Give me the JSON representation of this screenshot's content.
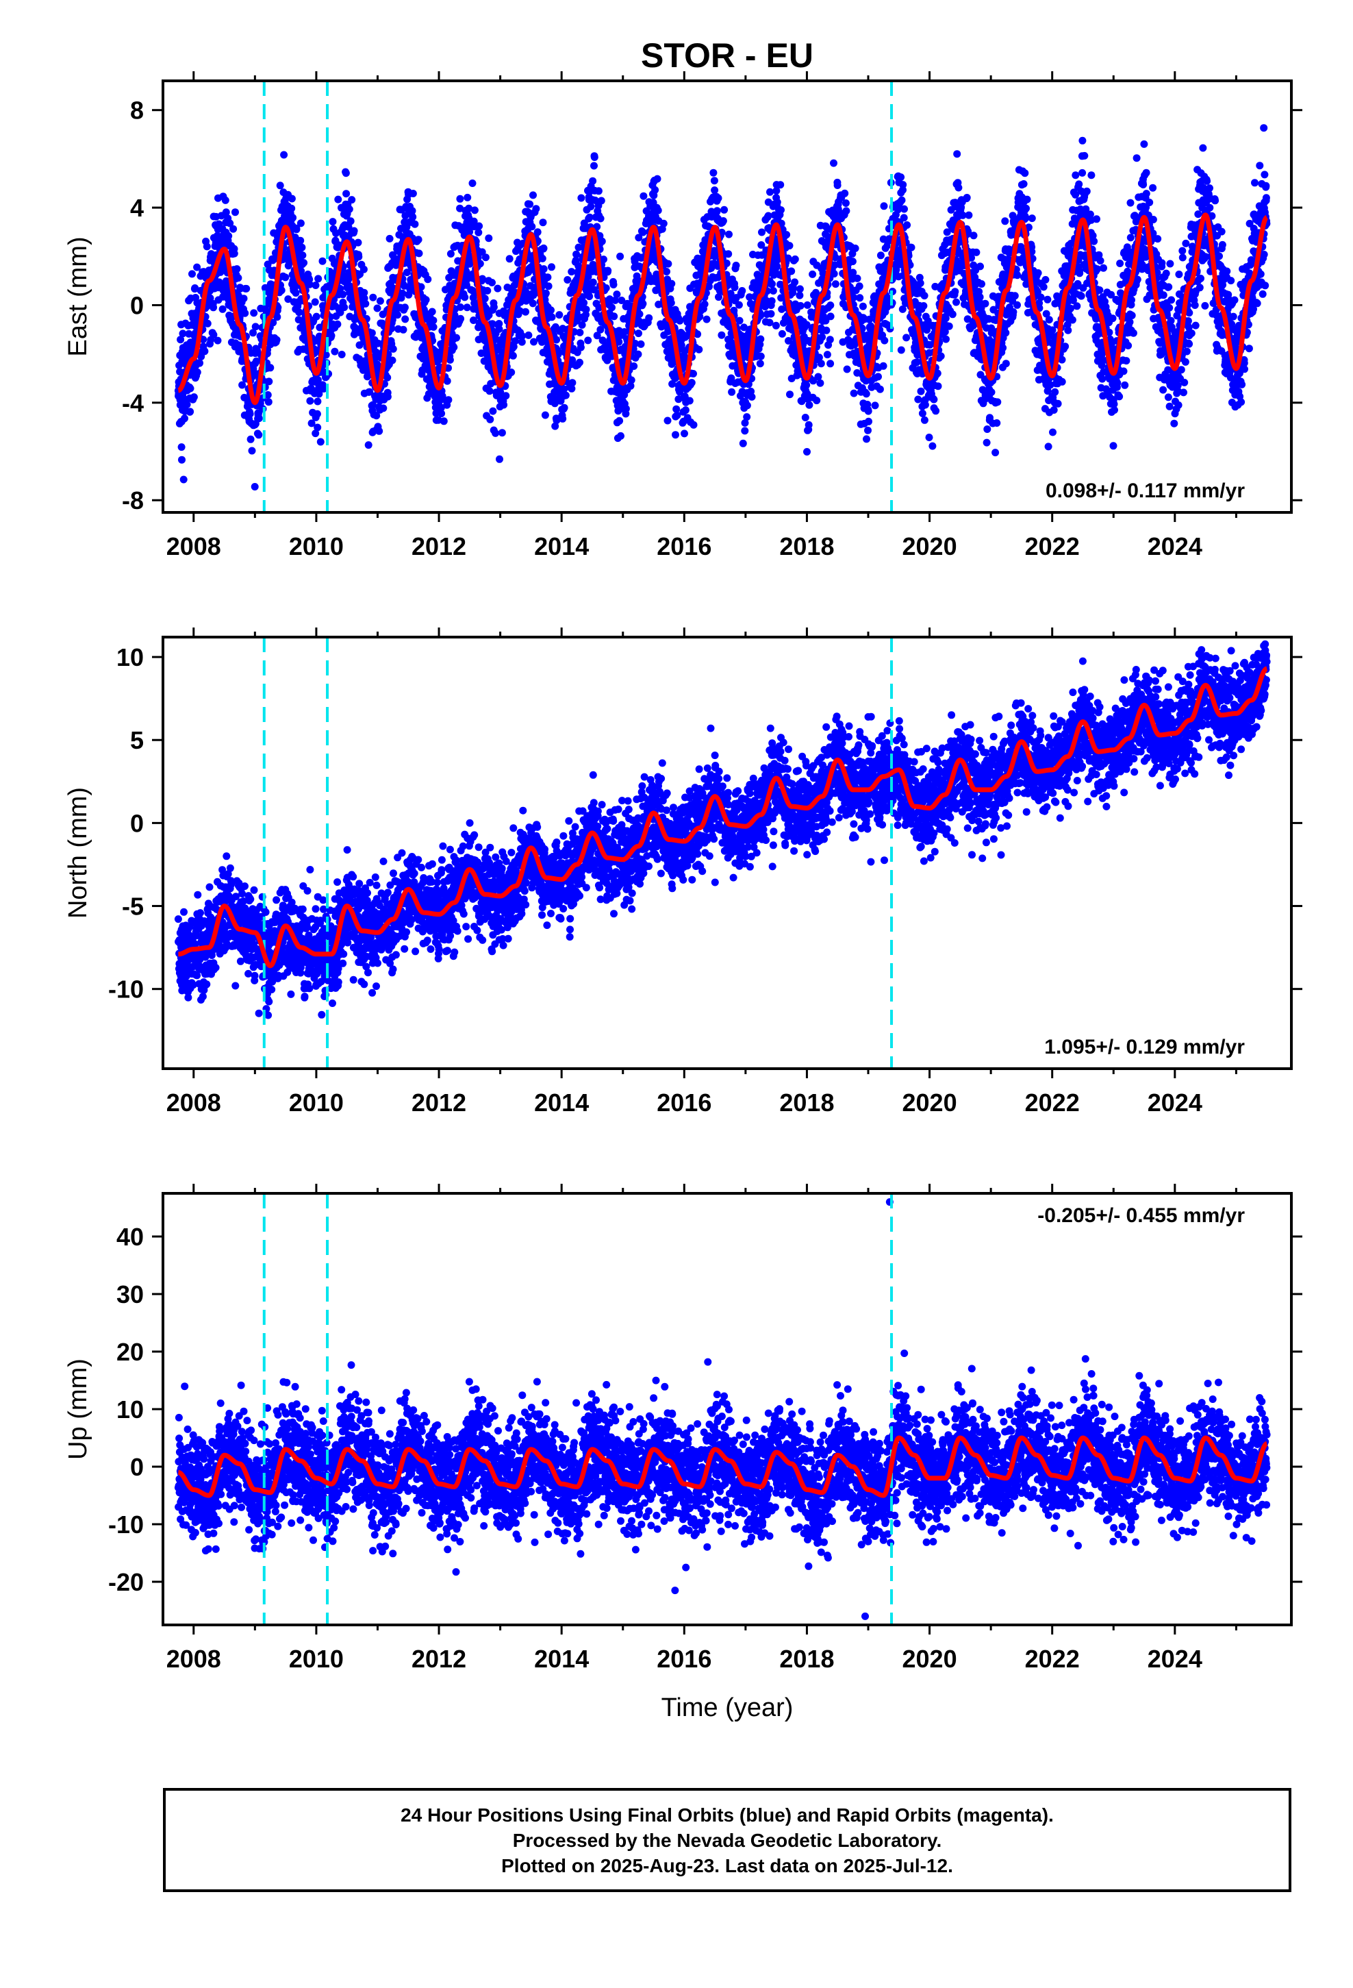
{
  "figure": {
    "title": "STOR - EU",
    "xlabel": "Time (year)",
    "footer_lines": [
      "24 Hour Positions Using Final Orbits (blue) and Rapid Orbits (magenta).",
      "Processed by the Nevada Geodetic Laboratory.",
      "Plotted on 2025-Aug-23. Last data on 2025-Jul-12."
    ],
    "colors": {
      "data_points": "#0000ff",
      "model_fit": "#ff0000",
      "equipment_change": "#00e5ee",
      "axes": "#000000"
    }
  },
  "chart_data": [
    {
      "type": "scatter",
      "component": "east",
      "ylabel": "East (mm)",
      "rate_label": "0.098+/- 0.117 mm/yr",
      "rate_position": "bottom-right",
      "xlim": [
        2007.5,
        2025.9
      ],
      "ylim": [
        -8.5,
        9.2
      ],
      "x_ticks": [
        2008,
        2010,
        2012,
        2014,
        2016,
        2018,
        2020,
        2022,
        2024
      ],
      "y_ticks": [
        -8,
        -4,
        0,
        4,
        8
      ],
      "equipment_changes": [
        2009.15,
        2010.18,
        2019.38
      ],
      "series": [
        {
          "role": "daily positions",
          "x": [
            2007.75,
            2008.0,
            2008.25,
            2008.5,
            2008.75,
            2009.0,
            2009.25,
            2009.5,
            2009.75,
            2010.0,
            2010.25,
            2010.5,
            2010.75,
            2011.0,
            2011.25,
            2011.5,
            2011.75,
            2012.0,
            2012.25,
            2012.5,
            2012.75,
            2013.0,
            2013.25,
            2013.5,
            2013.75,
            2014.0,
            2014.25,
            2014.5,
            2014.75,
            2015.0,
            2015.25,
            2015.5,
            2015.75,
            2016.0,
            2016.25,
            2016.5,
            2016.75,
            2017.0,
            2017.25,
            2017.5,
            2017.75,
            2018.0,
            2018.25,
            2018.5,
            2018.75,
            2019.0,
            2019.25,
            2019.5,
            2019.75,
            2020.0,
            2020.25,
            2020.5,
            2020.75,
            2021.0,
            2021.25,
            2021.5,
            2021.75,
            2022.0,
            2022.25,
            2022.5,
            2022.75,
            2023.0,
            2023.25,
            2023.5,
            2023.75,
            2024.0,
            2024.25,
            2024.5,
            2024.75,
            2025.0,
            2025.25,
            2025.5
          ],
          "y": [
            -3.5,
            -2.2,
            1.0,
            2.3,
            -0.8,
            -4.0,
            -0.5,
            3.2,
            0.9,
            -2.8,
            0.4,
            2.6,
            -0.6,
            -3.5,
            0.2,
            2.7,
            -0.8,
            -3.4,
            0.3,
            2.8,
            -0.7,
            -3.3,
            0.2,
            2.9,
            -0.9,
            -3.2,
            0.4,
            3.1,
            -0.7,
            -3.2,
            0.4,
            3.2,
            -0.6,
            -3.2,
            0.3,
            3.2,
            -0.4,
            -3.1,
            0.4,
            3.3,
            -0.4,
            -3.0,
            0.4,
            3.3,
            -0.4,
            -2.9,
            0.5,
            3.3,
            -0.5,
            -3.0,
            0.5,
            3.4,
            -0.5,
            -3.0,
            0.6,
            3.4,
            -0.3,
            -2.9,
            0.7,
            3.5,
            -0.2,
            -2.8,
            0.8,
            3.6,
            -0.2,
            -2.6,
            0.9,
            3.7,
            -0.1,
            -2.6,
            1.0,
            3.6
          ]
        },
        {
          "role": "model fit",
          "x": [
            2007.75,
            2008.0,
            2008.25,
            2008.5,
            2008.75,
            2009.0,
            2009.25,
            2009.5,
            2009.75,
            2010.0,
            2010.25,
            2010.5,
            2010.75,
            2011.0,
            2011.25,
            2011.5,
            2011.75,
            2012.0,
            2012.25,
            2012.5,
            2012.75,
            2013.0,
            2013.25,
            2013.5,
            2013.75,
            2014.0,
            2014.25,
            2014.5,
            2014.75,
            2015.0,
            2015.25,
            2015.5,
            2015.75,
            2016.0,
            2016.25,
            2016.5,
            2016.75,
            2017.0,
            2017.25,
            2017.5,
            2017.75,
            2018.0,
            2018.25,
            2018.5,
            2018.75,
            2019.0,
            2019.25,
            2019.5,
            2019.75,
            2020.0,
            2020.25,
            2020.5,
            2020.75,
            2021.0,
            2021.25,
            2021.5,
            2021.75,
            2022.0,
            2022.25,
            2022.5,
            2022.75,
            2023.0,
            2023.25,
            2023.5,
            2023.75,
            2024.0,
            2024.25,
            2024.5,
            2024.75,
            2025.0,
            2025.25,
            2025.5
          ],
          "y": [
            -3.5,
            -2.2,
            1.0,
            2.3,
            -0.8,
            -4.0,
            -0.5,
            3.2,
            0.9,
            -2.8,
            0.4,
            2.6,
            -0.6,
            -3.5,
            0.2,
            2.7,
            -0.8,
            -3.4,
            0.3,
            2.8,
            -0.7,
            -3.3,
            0.2,
            2.9,
            -0.9,
            -3.2,
            0.4,
            3.1,
            -0.7,
            -3.2,
            0.4,
            3.2,
            -0.6,
            -3.2,
            0.3,
            3.2,
            -0.4,
            -3.1,
            0.4,
            3.3,
            -0.4,
            -3.0,
            0.4,
            3.3,
            -0.4,
            -2.9,
            0.5,
            3.3,
            -0.5,
            -3.0,
            0.5,
            3.4,
            -0.5,
            -3.0,
            0.6,
            3.4,
            -0.3,
            -2.9,
            0.7,
            3.5,
            -0.2,
            -2.8,
            0.8,
            3.6,
            -0.2,
            -2.6,
            0.9,
            3.7,
            -0.1,
            -2.6,
            1.0,
            3.6
          ]
        }
      ]
    },
    {
      "type": "scatter",
      "component": "north",
      "ylabel": "North (mm)",
      "rate_label": "1.095+/- 0.129 mm/yr",
      "rate_position": "bottom-right",
      "xlim": [
        2007.5,
        2025.9
      ],
      "ylim": [
        -14.8,
        11.2
      ],
      "x_ticks": [
        2008,
        2010,
        2012,
        2014,
        2016,
        2018,
        2020,
        2022,
        2024
      ],
      "y_ticks": [
        -10,
        -5,
        0,
        5,
        10
      ],
      "equipment_changes": [
        2009.15,
        2010.18,
        2019.38
      ],
      "series": [
        {
          "role": "daily positions",
          "x": [
            2007.75,
            2008.0,
            2008.25,
            2008.5,
            2008.75,
            2009.0,
            2009.25,
            2009.5,
            2009.75,
            2010.0,
            2010.25,
            2010.5,
            2010.75,
            2011.0,
            2011.25,
            2011.5,
            2011.75,
            2012.0,
            2012.25,
            2012.5,
            2012.75,
            2013.0,
            2013.25,
            2013.5,
            2013.75,
            2014.0,
            2014.25,
            2014.5,
            2014.75,
            2015.0,
            2015.25,
            2015.5,
            2015.75,
            2016.0,
            2016.25,
            2016.5,
            2016.75,
            2017.0,
            2017.25,
            2017.5,
            2017.75,
            2018.0,
            2018.25,
            2018.5,
            2018.75,
            2019.0,
            2019.25,
            2019.5,
            2019.75,
            2020.0,
            2020.25,
            2020.5,
            2020.75,
            2021.0,
            2021.25,
            2021.5,
            2021.75,
            2022.0,
            2022.25,
            2022.5,
            2022.75,
            2023.0,
            2023.25,
            2023.5,
            2023.75,
            2024.0,
            2024.25,
            2024.5,
            2024.75,
            2025.0,
            2025.25,
            2025.5
          ],
          "y": [
            -7.9,
            -7.6,
            -7.5,
            -5.0,
            -6.4,
            -6.6,
            -8.6,
            -6.2,
            -7.5,
            -7.9,
            -7.9,
            -5.0,
            -6.5,
            -6.6,
            -5.8,
            -4.0,
            -5.4,
            -5.5,
            -4.8,
            -2.8,
            -4.3,
            -4.4,
            -3.8,
            -1.5,
            -3.3,
            -3.4,
            -2.5,
            -0.6,
            -2.1,
            -2.2,
            -1.4,
            0.6,
            -1.0,
            -1.1,
            -0.3,
            1.6,
            -0.1,
            -0.2,
            0.5,
            2.7,
            1.0,
            0.9,
            1.6,
            3.8,
            2.0,
            2.0,
            2.8,
            3.2,
            1.0,
            0.9,
            1.7,
            3.8,
            2.0,
            2.0,
            2.8,
            4.9,
            3.1,
            3.2,
            4.0,
            6.1,
            4.3,
            4.4,
            5.1,
            7.1,
            5.3,
            5.4,
            6.2,
            8.3,
            6.5,
            6.6,
            7.4,
            9.3
          ]
        },
        {
          "role": "model fit",
          "x": [
            2007.75,
            2008.0,
            2008.25,
            2008.5,
            2008.75,
            2009.0,
            2009.25,
            2009.5,
            2009.75,
            2010.0,
            2010.25,
            2010.5,
            2010.75,
            2011.0,
            2011.25,
            2011.5,
            2011.75,
            2012.0,
            2012.25,
            2012.5,
            2012.75,
            2013.0,
            2013.25,
            2013.5,
            2013.75,
            2014.0,
            2014.25,
            2014.5,
            2014.75,
            2015.0,
            2015.25,
            2015.5,
            2015.75,
            2016.0,
            2016.25,
            2016.5,
            2016.75,
            2017.0,
            2017.25,
            2017.5,
            2017.75,
            2018.0,
            2018.25,
            2018.5,
            2018.75,
            2019.0,
            2019.25,
            2019.5,
            2019.75,
            2020.0,
            2020.25,
            2020.5,
            2020.75,
            2021.0,
            2021.25,
            2021.5,
            2021.75,
            2022.0,
            2022.25,
            2022.5,
            2022.75,
            2023.0,
            2023.25,
            2023.5,
            2023.75,
            2024.0,
            2024.25,
            2024.5,
            2024.75,
            2025.0,
            2025.25,
            2025.5
          ],
          "y": [
            -7.9,
            -7.6,
            -7.5,
            -5.0,
            -6.4,
            -6.6,
            -8.6,
            -6.2,
            -7.5,
            -7.9,
            -7.9,
            -5.0,
            -6.5,
            -6.6,
            -5.8,
            -4.0,
            -5.4,
            -5.5,
            -4.8,
            -2.8,
            -4.3,
            -4.4,
            -3.8,
            -1.5,
            -3.3,
            -3.4,
            -2.5,
            -0.6,
            -2.1,
            -2.2,
            -1.4,
            0.6,
            -1.0,
            -1.1,
            -0.3,
            1.6,
            -0.1,
            -0.2,
            0.5,
            2.7,
            1.0,
            0.9,
            1.6,
            3.8,
            2.0,
            2.0,
            2.8,
            3.2,
            1.0,
            0.9,
            1.7,
            3.8,
            2.0,
            2.0,
            2.8,
            4.9,
            3.1,
            3.2,
            4.0,
            6.1,
            4.3,
            4.4,
            5.1,
            7.1,
            5.3,
            5.4,
            6.2,
            8.3,
            6.5,
            6.6,
            7.4,
            9.3
          ]
        }
      ]
    },
    {
      "type": "scatter",
      "component": "up",
      "ylabel": "Up (mm)",
      "rate_label": "-0.205+/- 0.455 mm/yr",
      "rate_position": "top-right",
      "xlim": [
        2007.5,
        2025.9
      ],
      "ylim": [
        -27.5,
        47.5
      ],
      "x_ticks": [
        2008,
        2010,
        2012,
        2014,
        2016,
        2018,
        2020,
        2022,
        2024
      ],
      "y_ticks": [
        -20,
        -10,
        0,
        10,
        20,
        30,
        40
      ],
      "equipment_changes": [
        2009.15,
        2010.18,
        2019.38
      ],
      "series": [
        {
          "role": "daily positions",
          "x": [
            2007.75,
            2008.0,
            2008.25,
            2008.5,
            2008.75,
            2009.0,
            2009.25,
            2009.5,
            2009.75,
            2010.0,
            2010.25,
            2010.5,
            2010.75,
            2011.0,
            2011.25,
            2011.5,
            2011.75,
            2012.0,
            2012.25,
            2012.5,
            2012.75,
            2013.0,
            2013.25,
            2013.5,
            2013.75,
            2014.0,
            2014.25,
            2014.5,
            2014.75,
            2015.0,
            2015.25,
            2015.5,
            2015.75,
            2016.0,
            2016.25,
            2016.5,
            2016.75,
            2017.0,
            2017.25,
            2017.5,
            2017.75,
            2018.0,
            2018.25,
            2018.5,
            2018.75,
            2019.0,
            2019.25,
            2019.5,
            2019.75,
            2020.0,
            2020.25,
            2020.5,
            2020.75,
            2021.0,
            2021.25,
            2021.5,
            2021.75,
            2022.0,
            2022.25,
            2022.5,
            2022.75,
            2023.0,
            2023.25,
            2023.5,
            2023.75,
            2024.0,
            2024.25,
            2024.5,
            2024.75,
            2025.0,
            2025.25,
            2025.5
          ],
          "y": [
            -1.0,
            -4.0,
            -5.0,
            2.0,
            0.5,
            -4.0,
            -4.5,
            3.0,
            1.0,
            -2.0,
            -3.0,
            3.0,
            1.0,
            -3.0,
            -3.5,
            3.0,
            1.0,
            -3.0,
            -3.5,
            3.0,
            1.0,
            -3.0,
            -3.5,
            3.0,
            1.0,
            -3.0,
            -3.5,
            3.0,
            1.0,
            -3.0,
            -3.5,
            3.0,
            1.0,
            -3.0,
            -3.5,
            3.0,
            1.0,
            -3.0,
            -3.5,
            2.5,
            0.5,
            -4.0,
            -4.5,
            2.0,
            0.0,
            -4.0,
            -5.0,
            5.0,
            2.0,
            -2.0,
            -2.0,
            5.0,
            2.0,
            -1.5,
            -2.0,
            5.0,
            2.0,
            -1.5,
            -2.0,
            5.0,
            2.0,
            -2.0,
            -2.5,
            5.0,
            2.0,
            -2.0,
            -2.5,
            5.0,
            2.0,
            -2.0,
            -2.5,
            4.0
          ]
        },
        {
          "role": "model fit",
          "x": [
            2007.75,
            2008.0,
            2008.25,
            2008.5,
            2008.75,
            2009.0,
            2009.25,
            2009.5,
            2009.75,
            2010.0,
            2010.25,
            2010.5,
            2010.75,
            2011.0,
            2011.25,
            2011.5,
            2011.75,
            2012.0,
            2012.25,
            2012.5,
            2012.75,
            2013.0,
            2013.25,
            2013.5,
            2013.75,
            2014.0,
            2014.25,
            2014.5,
            2014.75,
            2015.0,
            2015.25,
            2015.5,
            2015.75,
            2016.0,
            2016.25,
            2016.5,
            2016.75,
            2017.0,
            2017.25,
            2017.5,
            2017.75,
            2018.0,
            2018.25,
            2018.5,
            2018.75,
            2019.0,
            2019.25,
            2019.5,
            2019.75,
            2020.0,
            2020.25,
            2020.5,
            2020.75,
            2021.0,
            2021.25,
            2021.5,
            2021.75,
            2022.0,
            2022.25,
            2022.5,
            2022.75,
            2023.0,
            2023.25,
            2023.5,
            2023.75,
            2024.0,
            2024.25,
            2024.5,
            2024.75,
            2025.0,
            2025.25,
            2025.5
          ],
          "y": [
            -1.0,
            -4.0,
            -5.0,
            2.0,
            0.5,
            -4.0,
            -4.5,
            3.0,
            1.0,
            -2.0,
            -3.0,
            3.0,
            1.0,
            -3.0,
            -3.5,
            3.0,
            1.0,
            -3.0,
            -3.5,
            3.0,
            1.0,
            -3.0,
            -3.5,
            3.0,
            1.0,
            -3.0,
            -3.5,
            3.0,
            1.0,
            -3.0,
            -3.5,
            3.0,
            1.0,
            -3.0,
            -3.5,
            3.0,
            1.0,
            -3.0,
            -3.5,
            2.5,
            0.5,
            -4.0,
            -4.5,
            2.0,
            0.0,
            -4.0,
            -5.0,
            5.0,
            2.0,
            -2.0,
            -2.0,
            5.0,
            2.0,
            -1.5,
            -2.0,
            5.0,
            2.0,
            -1.5,
            -2.0,
            5.0,
            2.0,
            -2.0,
            -2.5,
            5.0,
            2.0,
            -2.0,
            -2.5,
            5.0,
            2.0,
            -2.0,
            -2.5,
            4.0
          ]
        },
        {
          "role": "outliers",
          "x": [
            2019.35,
            2018.95,
            2015.85
          ],
          "y": [
            46.0,
            -26.0,
            -21.5
          ]
        }
      ]
    }
  ]
}
